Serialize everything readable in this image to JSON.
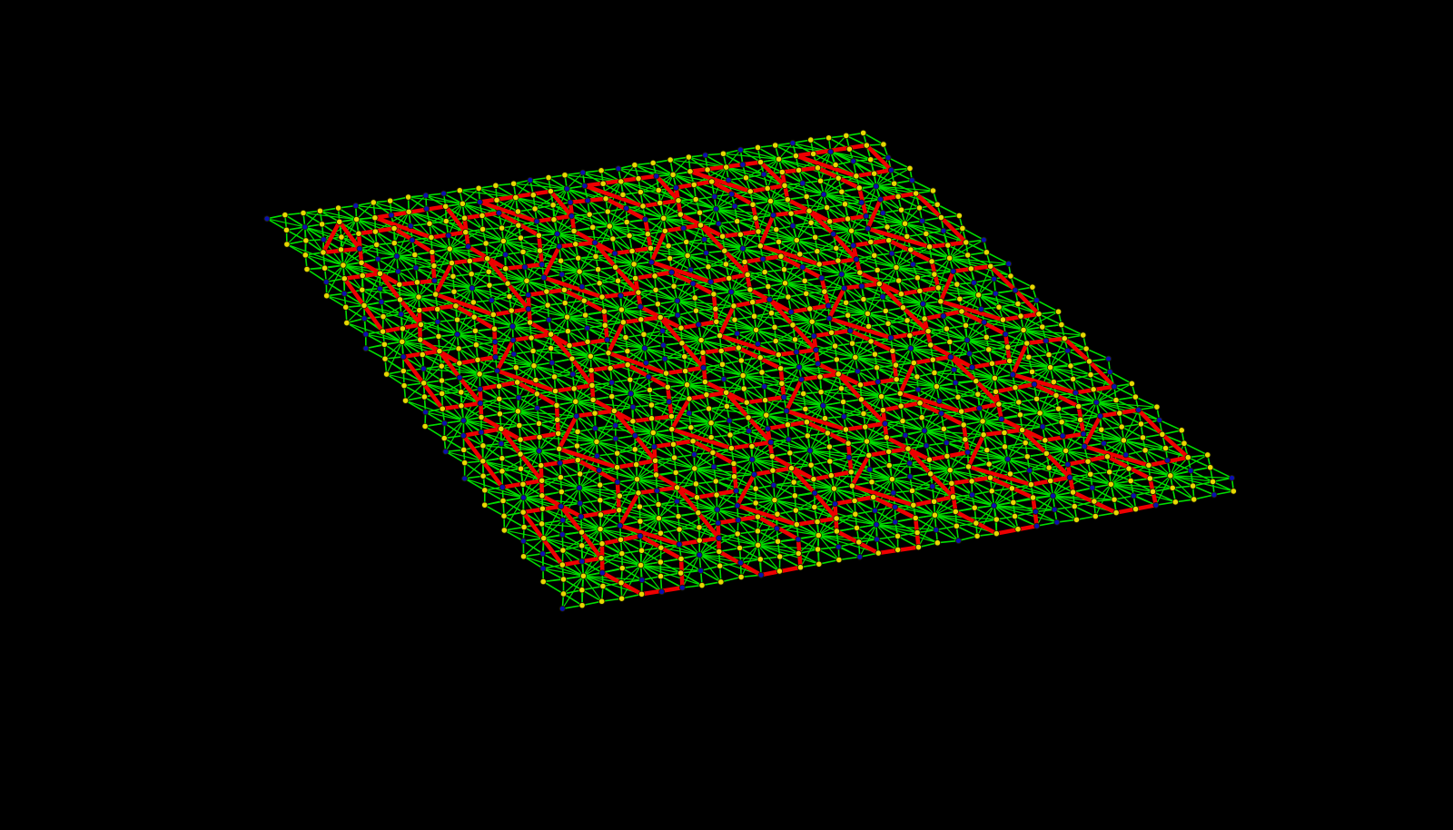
{
  "scene": {
    "background_color": "#000000",
    "edge_color": "#00dd00",
    "ring_bond_color": "#ee0000",
    "node_colors": {
      "yellow": "#e8d800",
      "blue": "#0a10b0",
      "node_outline": "#202000"
    }
  }
}
